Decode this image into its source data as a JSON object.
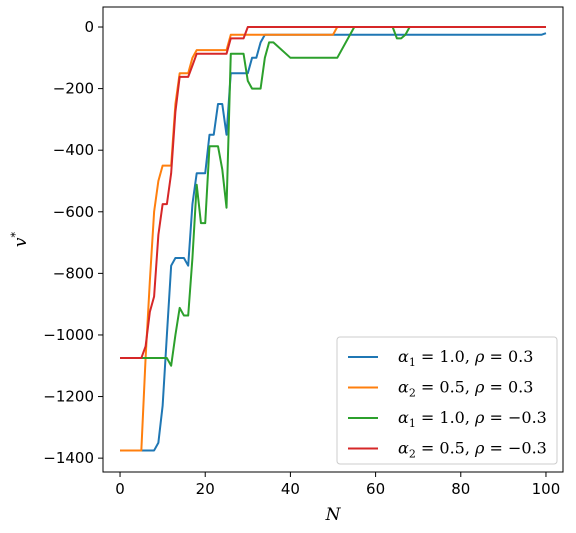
{
  "chart_data": {
    "type": "line",
    "title": "",
    "xlabel": "N",
    "ylabel": "v",
    "ylabel_superscript": "*",
    "xlim": [
      -4,
      104
    ],
    "ylim": [
      -1445,
      65
    ],
    "xticks": [
      0,
      20,
      40,
      60,
      80,
      100
    ],
    "yticks": [
      0,
      -200,
      -400,
      -600,
      -800,
      -1000,
      -1200,
      -1400
    ],
    "xtick_labels": [
      "0",
      "20",
      "40",
      "60",
      "80",
      "100"
    ],
    "ytick_labels": [
      "0",
      "−200",
      "−400",
      "−600",
      "−800",
      "−1000",
      "−1200",
      "−1400"
    ],
    "grid": false,
    "legend_position": "lower-right",
    "series": [
      {
        "name": "α₁ = 1.0, ρ = 0.3",
        "legend_parts": {
          "sym": "α",
          "sub": "1",
          "rest": " = 1.0, ",
          "rho": "ρ",
          "rho_rest": " = 0.3"
        },
        "color": "#1f77b4",
        "x": [
          0,
          5,
          8,
          9,
          10,
          11,
          12,
          13,
          14,
          15,
          16,
          17,
          18,
          19,
          20,
          21,
          22,
          23,
          24,
          25,
          26,
          27,
          28,
          29,
          30,
          31,
          32,
          33,
          34,
          35,
          40,
          45,
          50,
          51,
          55,
          60,
          65,
          70,
          75,
          80,
          85,
          90,
          95,
          99,
          100
        ],
        "y": [
          -1375,
          -1375,
          -1375,
          -1350,
          -1230,
          -1000,
          -775,
          -750,
          -750,
          -750,
          -775,
          -575,
          -475,
          -475,
          -475,
          -350,
          -350,
          -250,
          -250,
          -350,
          -150,
          -150,
          -150,
          -150,
          -150,
          -100,
          -100,
          -50,
          -25,
          -25,
          -25,
          -25,
          -25,
          -25,
          -25,
          -25,
          -25,
          -25,
          -25,
          -25,
          -25,
          -25,
          -25,
          -25,
          -20
        ]
      },
      {
        "name": "α₂ = 0.5, ρ = 0.3",
        "legend_parts": {
          "sym": "α",
          "sub": "2",
          "rest": " = 0.5, ",
          "rho": "ρ",
          "rho_rest": " = 0.3"
        },
        "color": "#ff7f0e",
        "x": [
          0,
          5,
          6,
          7,
          8,
          9,
          10,
          11,
          12,
          13,
          14,
          15,
          16,
          17,
          18,
          19,
          20,
          21,
          22,
          23,
          24,
          25,
          26,
          27,
          28,
          29,
          30,
          35,
          40,
          45,
          50,
          51,
          55,
          60,
          65,
          70,
          75,
          80,
          85,
          90,
          95,
          100
        ],
        "y": [
          -1375,
          -1375,
          -1075,
          -825,
          -600,
          -500,
          -450,
          -450,
          -450,
          -250,
          -150,
          -150,
          -150,
          -100,
          -75,
          -75,
          -75,
          -75,
          -75,
          -75,
          -75,
          -75,
          -25,
          -25,
          -25,
          -25,
          -25,
          -25,
          -25,
          -25,
          -25,
          0,
          0,
          0,
          0,
          0,
          0,
          0,
          0,
          0,
          0,
          0
        ]
      },
      {
        "name": "α₁ = 1.0, ρ = −0.3",
        "legend_parts": {
          "sym": "α",
          "sub": "1",
          "rest": " = 1.0, ",
          "rho": "ρ",
          "rho_rest": " = −0.3"
        },
        "color": "#2ca02c",
        "x": [
          0,
          5,
          6,
          7,
          8,
          9,
          10,
          11,
          12,
          13,
          14,
          15,
          16,
          17,
          18,
          19,
          20,
          21,
          22,
          23,
          24,
          25,
          26,
          27,
          28,
          29,
          30,
          31,
          32,
          33,
          34,
          35,
          36,
          40,
          45,
          50,
          51,
          55,
          60,
          63,
          64,
          65,
          66,
          67,
          68,
          70,
          75,
          80,
          85,
          90,
          95,
          100
        ],
        "y": [
          -1075,
          -1075,
          -1075,
          -1075,
          -1075,
          -1075,
          -1075,
          -1075,
          -1100,
          -1000,
          -912,
          -937,
          -937,
          -750,
          -512,
          -637,
          -637,
          -387,
          -387,
          -387,
          -462,
          -587,
          -87,
          -87,
          -87,
          -87,
          -175,
          -200,
          -200,
          -200,
          -100,
          -50,
          -50,
          -100,
          -100,
          -100,
          -100,
          0,
          0,
          0,
          0,
          -37,
          -37,
          -25,
          0,
          0,
          0,
          0,
          0,
          0,
          0,
          0
        ]
      },
      {
        "name": "α₂ = 0.5, ρ = −0.3",
        "legend_parts": {
          "sym": "α",
          "sub": "2",
          "rest": " = 0.5, ",
          "rho": "ρ",
          "rho_rest": " = −0.3"
        },
        "color": "#d62728",
        "x": [
          0,
          5,
          6,
          7,
          8,
          9,
          10,
          11,
          12,
          13,
          14,
          15,
          16,
          17,
          18,
          19,
          20,
          21,
          22,
          23,
          24,
          25,
          26,
          27,
          28,
          29,
          30,
          35,
          40,
          45,
          50,
          55,
          60,
          65,
          70,
          75,
          80,
          85,
          90,
          95,
          100
        ],
        "y": [
          -1075,
          -1075,
          -1037,
          -925,
          -875,
          -675,
          -575,
          -575,
          -475,
          -275,
          -162,
          -162,
          -162,
          -125,
          -87,
          -87,
          -87,
          -87,
          -87,
          -87,
          -87,
          -87,
          -37,
          -37,
          -37,
          -37,
          0,
          0,
          0,
          0,
          0,
          0,
          0,
          0,
          0,
          0,
          0,
          0,
          0,
          0,
          0
        ]
      }
    ]
  }
}
